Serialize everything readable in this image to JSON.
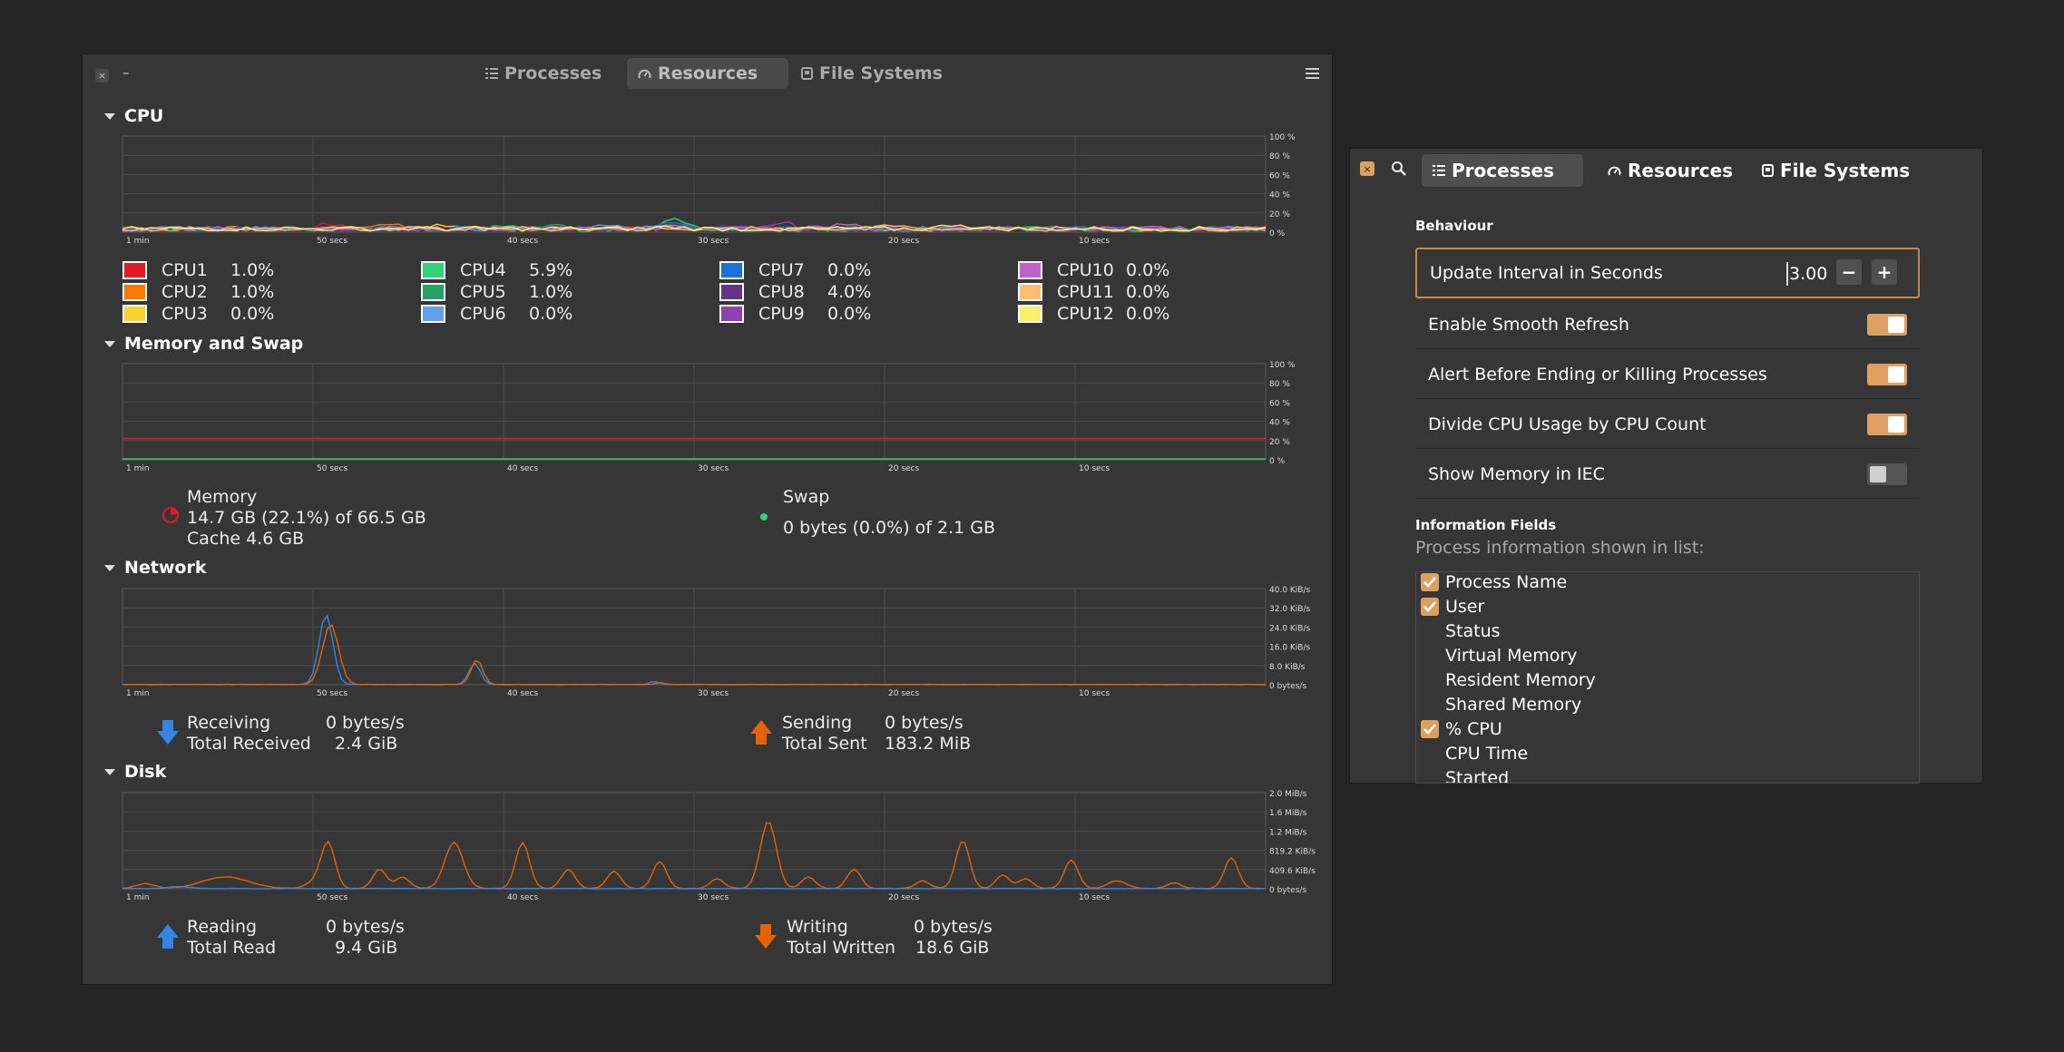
{
  "main_window": {
    "close_glyph": "×",
    "minimize_glyph": "–",
    "tabs": [
      {
        "label": "Processes",
        "icon": "list-icon",
        "active": false
      },
      {
        "label": "Resources",
        "icon": "gauge-icon",
        "active": true
      },
      {
        "label": "File Systems",
        "icon": "drive-icon",
        "active": false
      }
    ],
    "menu_icon": "hamburger-icon",
    "sections": {
      "cpu": "CPU",
      "memory": "Memory and Swap",
      "network": "Network",
      "disk": "Disk"
    },
    "time_ticks": [
      "1 min",
      "50 secs",
      "40 secs",
      "30 secs",
      "20 secs",
      "10 secs"
    ],
    "percent_ticks": [
      "100 %",
      "80 %",
      "60 %",
      "40 %",
      "20 %",
      "0 %"
    ],
    "network_ticks": [
      "40.0 KiB/s",
      "32.0 KiB/s",
      "24.0 KiB/s",
      "16.0 KiB/s",
      "8.0 KiB/s",
      "0 bytes/s"
    ],
    "disk_ticks": [
      "2.0 MiB/s",
      "1.6 MiB/s",
      "1.2 MiB/s",
      "819.2 KiB/s",
      "409.6 KiB/s",
      "0 bytes/s"
    ],
    "cpus": [
      {
        "name": "CPU1",
        "value": "1.0%",
        "color": "#e01b24"
      },
      {
        "name": "CPU2",
        "value": "1.0%",
        "color": "#ff7800"
      },
      {
        "name": "CPU3",
        "value": "0.0%",
        "color": "#f6d32d"
      },
      {
        "name": "CPU4",
        "value": "5.9%",
        "color": "#33d17a"
      },
      {
        "name": "CPU5",
        "value": "1.0%",
        "color": "#26a269"
      },
      {
        "name": "CPU6",
        "value": "0.0%",
        "color": "#62a0ea"
      },
      {
        "name": "CPU7",
        "value": "0.0%",
        "color": "#1c71d8"
      },
      {
        "name": "CPU8",
        "value": "4.0%",
        "color": "#613583"
      },
      {
        "name": "CPU9",
        "value": "0.0%",
        "color": "#9141ac"
      },
      {
        "name": "CPU10",
        "value": "0.0%",
        "color": "#c061cb"
      },
      {
        "name": "CPU11",
        "value": "0.0%",
        "color": "#ffbe6f"
      },
      {
        "name": "CPU12",
        "value": "0.0%",
        "color": "#f9f06b"
      }
    ],
    "memory": {
      "title": "Memory",
      "usage": "14.7 GB (22.1%) of 66.5 GB",
      "cache": "Cache 4.6 GB",
      "percent": 22.1,
      "color": "#e01b24"
    },
    "swap": {
      "title": "Swap",
      "usage": "0 bytes (0.0%) of 2.1 GB",
      "percent": 0.0,
      "color": "#33d17a"
    },
    "network": {
      "receiving_label": "Receiving",
      "receiving_value": "0 bytes/s",
      "total_received_label": "Total Received",
      "total_received_value": "2.4 GiB",
      "sending_label": "Sending",
      "sending_value": "0 bytes/s",
      "total_sent_label": "Total Sent",
      "total_sent_value": "183.2 MiB",
      "receive_color": "#3584e4",
      "send_color": "#e66100"
    },
    "disk": {
      "reading_label": "Reading",
      "reading_value": "0 bytes/s",
      "total_read_label": "Total Read",
      "total_read_value": "9.4 GiB",
      "writing_label": "Writing",
      "writing_value": "0 bytes/s",
      "total_written_label": "Total Written",
      "total_written_value": "18.6 GiB"
    }
  },
  "prefs_window": {
    "close_glyph": "×",
    "search_icon": "search-icon",
    "tabs": [
      {
        "label": "Processes",
        "icon": "list-icon",
        "active": true
      },
      {
        "label": "Resources",
        "icon": "gauge-icon",
        "active": false
      },
      {
        "label": "File Systems",
        "icon": "drive-icon",
        "active": false
      }
    ],
    "behaviour_title": "Behaviour",
    "update_interval_label": "Update Interval in Seconds",
    "update_interval_value": "3.00",
    "minus": "−",
    "plus": "+",
    "toggles": [
      {
        "label": "Enable Smooth Refresh",
        "on": true
      },
      {
        "label": "Alert Before Ending or Killing Processes",
        "on": true
      },
      {
        "label": "Divide CPU Usage by CPU Count",
        "on": true
      },
      {
        "label": "Show Memory in IEC",
        "on": false
      }
    ],
    "info_title": "Information Fields",
    "info_subtitle": "Process information shown in list:",
    "fields": [
      {
        "label": "Process Name",
        "checked": true
      },
      {
        "label": "User",
        "checked": true
      },
      {
        "label": "Status",
        "checked": false
      },
      {
        "label": "Virtual Memory",
        "checked": false
      },
      {
        "label": "Resident Memory",
        "checked": false
      },
      {
        "label": "Shared Memory",
        "checked": false
      },
      {
        "label": "% CPU",
        "checked": true
      },
      {
        "label": "CPU Time",
        "checked": false
      },
      {
        "label": "Started",
        "checked": false
      }
    ]
  }
}
